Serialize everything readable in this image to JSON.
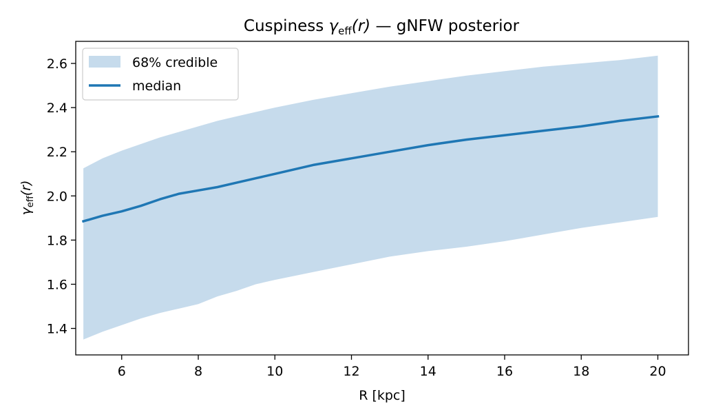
{
  "chart_data": {
    "type": "area",
    "title": {
      "prefix": "Cuspiness ",
      "symbol": "γ",
      "subscript": "eff",
      "argument": "(r)",
      "suffix": " — gNFW posterior"
    },
    "xlabel": "R [kpc]",
    "ylabel": {
      "symbol": "γ",
      "subscript": "eff",
      "argument": "(r)"
    },
    "xlim": [
      4.8,
      20.8
    ],
    "ylim": [
      1.28,
      2.7
    ],
    "xticks": [
      6,
      8,
      10,
      12,
      14,
      16,
      18,
      20
    ],
    "xtick_labels": [
      "6",
      "8",
      "10",
      "12",
      "14",
      "16",
      "18",
      "20"
    ],
    "yticks": [
      1.4,
      1.6,
      1.8,
      2.0,
      2.2,
      2.4,
      2.6
    ],
    "ytick_labels": [
      "1.4",
      "1.6",
      "1.8",
      "2.0",
      "2.2",
      "2.4",
      "2.6"
    ],
    "grid": false,
    "legend_position": "top-left",
    "legend": [
      {
        "label": "68% credible",
        "kind": "band"
      },
      {
        "label": "median",
        "kind": "line"
      }
    ],
    "colors": {
      "band": "#c6dbec",
      "median": "#1f77b4"
    },
    "x": [
      5,
      5.5,
      6,
      6.5,
      7,
      7.5,
      8,
      8.5,
      9,
      9.5,
      10,
      11,
      12,
      13,
      14,
      15,
      16,
      17,
      18,
      19,
      20
    ],
    "series": [
      {
        "name": "median",
        "values": [
          1.885,
          1.91,
          1.93,
          1.955,
          1.985,
          2.01,
          2.025,
          2.04,
          2.06,
          2.08,
          2.1,
          2.14,
          2.17,
          2.2,
          2.23,
          2.255,
          2.275,
          2.295,
          2.315,
          2.34,
          2.36
        ]
      },
      {
        "name": "68% credible",
        "lower": [
          1.35,
          1.385,
          1.415,
          1.445,
          1.47,
          1.49,
          1.51,
          1.545,
          1.57,
          1.6,
          1.62,
          1.655,
          1.69,
          1.725,
          1.75,
          1.77,
          1.795,
          1.825,
          1.855,
          1.88,
          1.905
        ],
        "upper": [
          2.125,
          2.17,
          2.205,
          2.235,
          2.265,
          2.29,
          2.315,
          2.34,
          2.36,
          2.38,
          2.4,
          2.435,
          2.465,
          2.495,
          2.52,
          2.545,
          2.565,
          2.585,
          2.6,
          2.615,
          2.635
        ]
      }
    ]
  }
}
